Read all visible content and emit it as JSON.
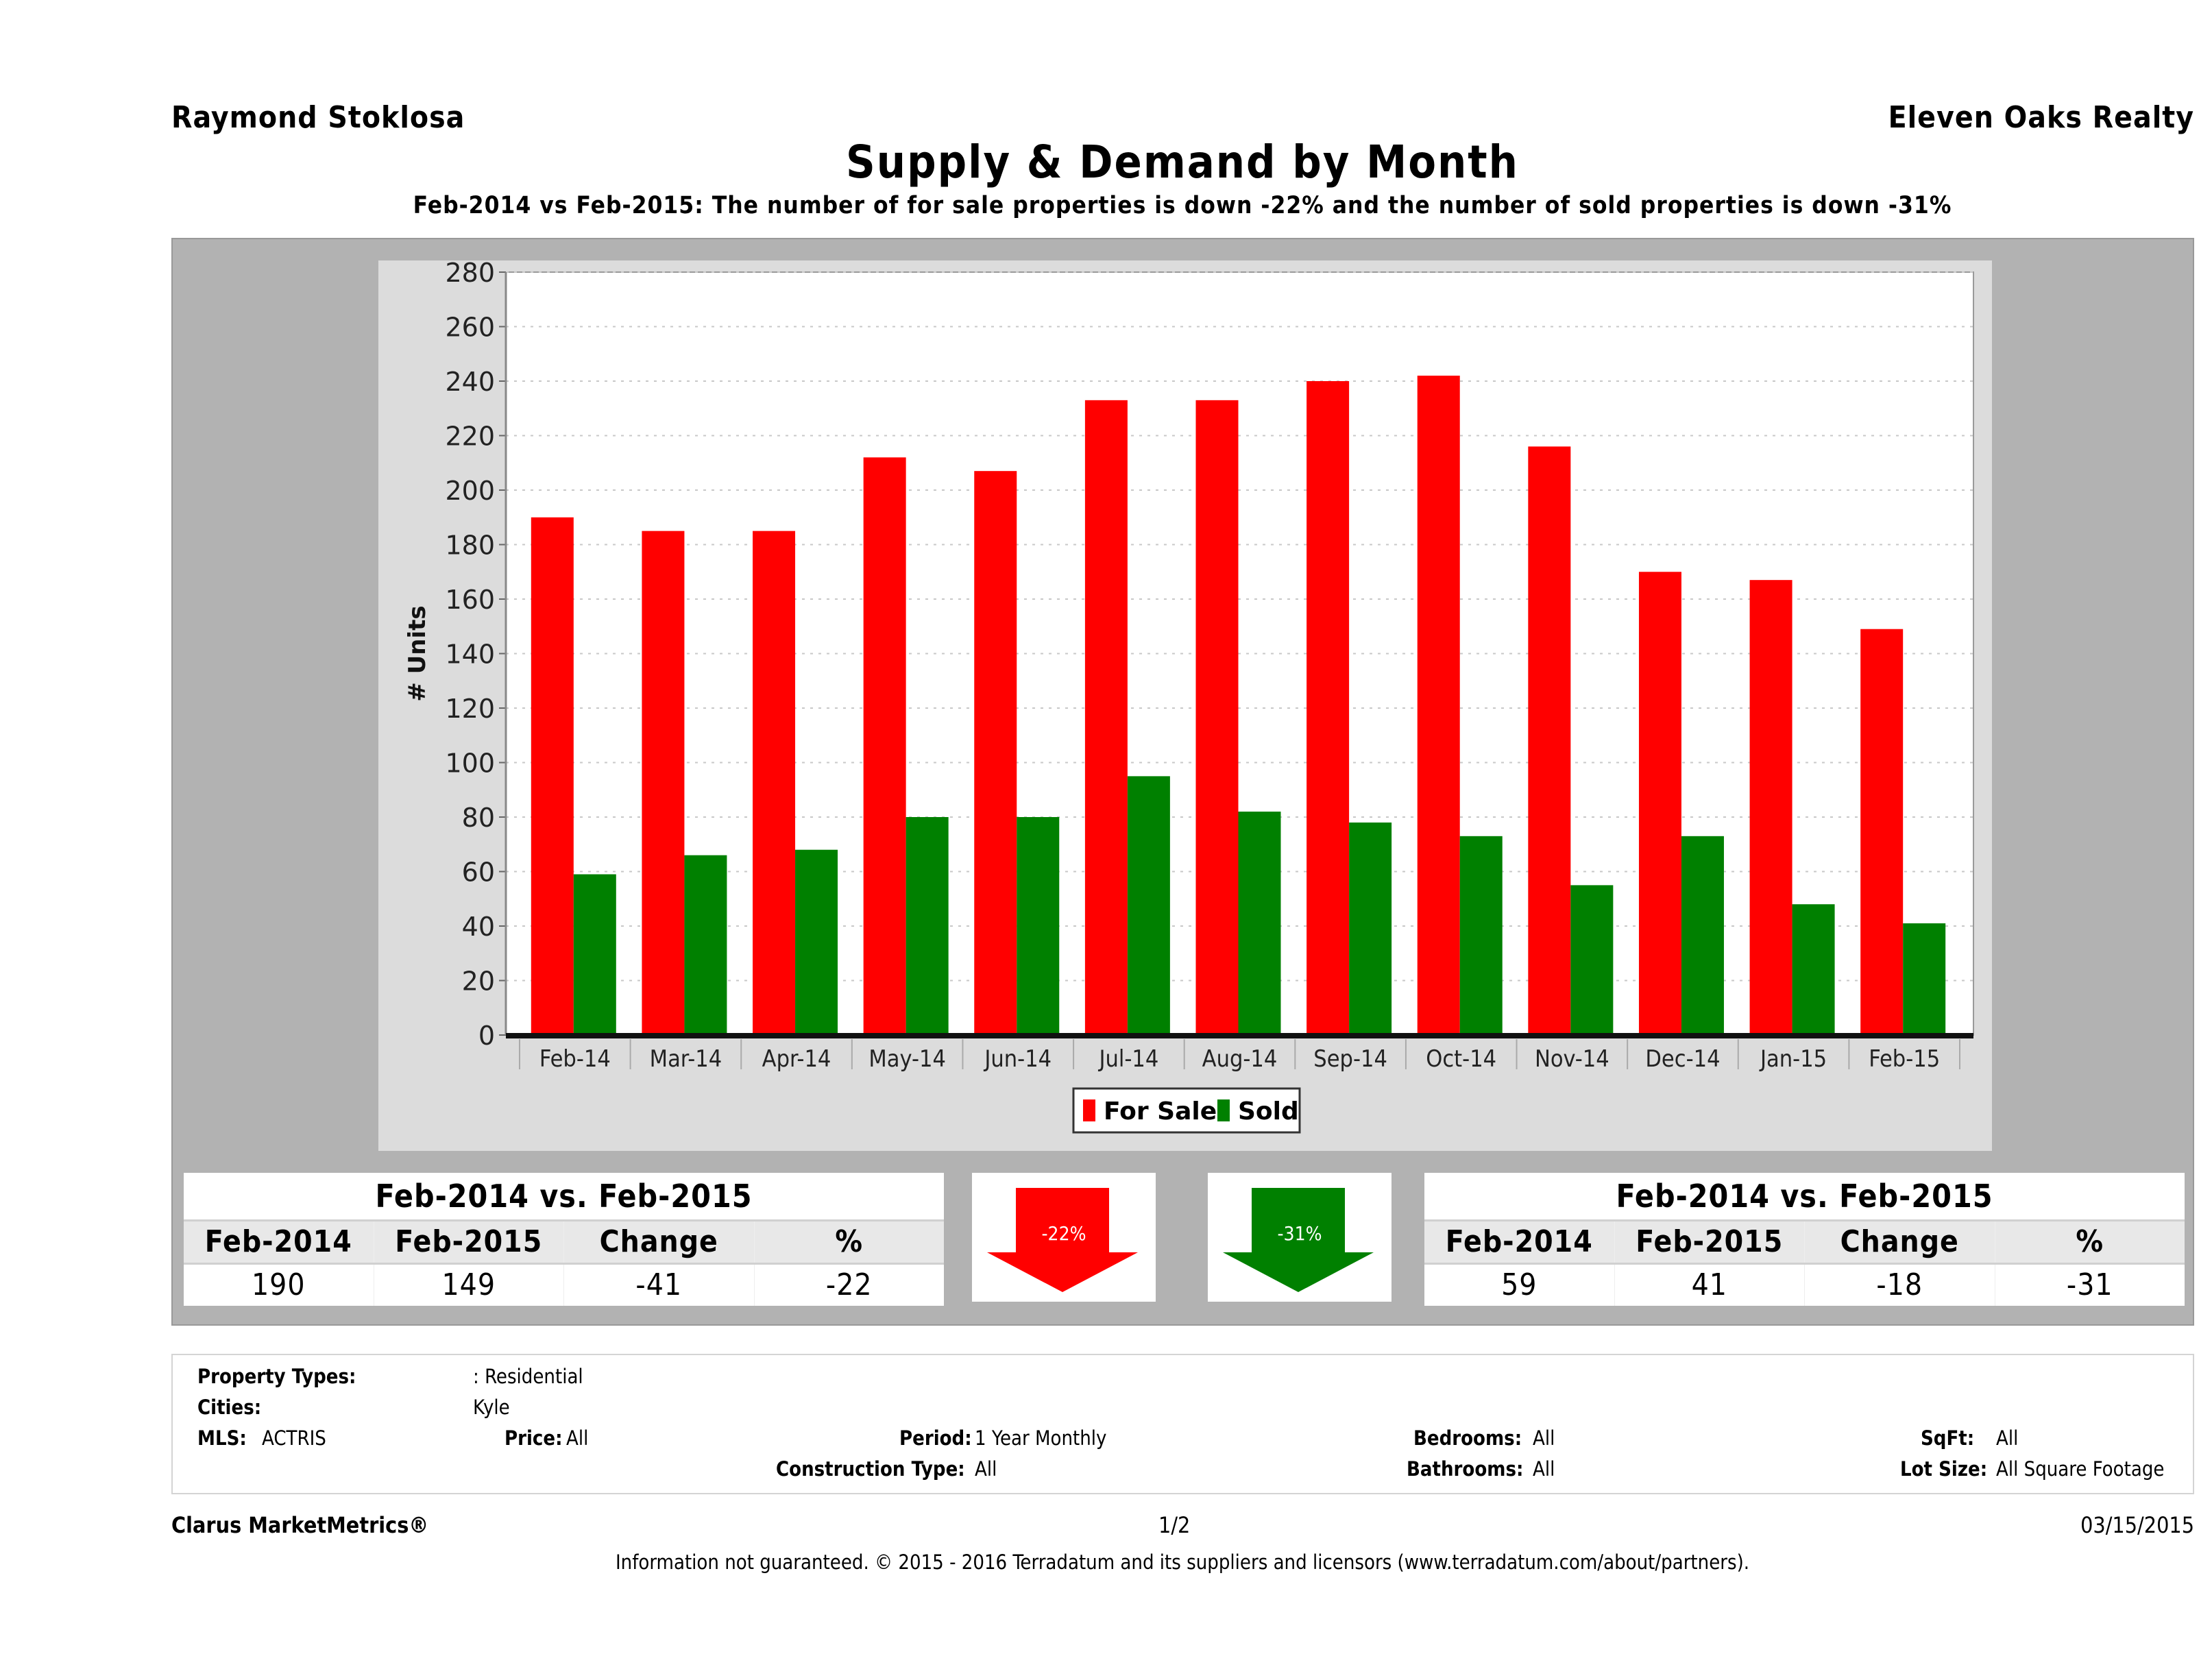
{
  "header": {
    "agent_name": "Raymond Stoklosa",
    "office_name": "Eleven Oaks Realty",
    "title": "Supply & Demand by Month",
    "subtitle": "Feb-2014 vs Feb-2015: The number of for sale properties is down -22% and the number of sold properties is down -31%"
  },
  "chart_data": {
    "type": "bar",
    "title": "Supply & Demand by Month",
    "xlabel": "",
    "ylabel": "# Units",
    "ylim": [
      0,
      280
    ],
    "yticks": [
      "0",
      "20",
      "40",
      "60",
      "80",
      "100",
      "120",
      "140",
      "160",
      "180",
      "200",
      "220",
      "240",
      "260",
      "280"
    ],
    "grid": true,
    "legend_position": "bottom",
    "categories": [
      "Feb-14",
      "Mar-14",
      "Apr-14",
      "May-14",
      "Jun-14",
      "Jul-14",
      "Aug-14",
      "Sep-14",
      "Oct-14",
      "Nov-14",
      "Dec-14",
      "Jan-15",
      "Feb-15"
    ],
    "series": [
      {
        "name": "For Sale",
        "color": "#ff0000",
        "values": [
          190,
          185,
          185,
          212,
          207,
          233,
          233,
          240,
          242,
          216,
          170,
          167,
          149
        ]
      },
      {
        "name": "Sold",
        "color": "#008000",
        "values": [
          59,
          66,
          68,
          80,
          80,
          95,
          82,
          78,
          73,
          55,
          73,
          48,
          41
        ]
      }
    ]
  },
  "summary_left": {
    "title": "Feb-2014 vs. Feb-2015",
    "headers": [
      "Feb-2014",
      "Feb-2015",
      "Change",
      "%"
    ],
    "values": [
      "190",
      "149",
      "-41",
      "-22"
    ]
  },
  "summary_right": {
    "title": "Feb-2014 vs. Feb-2015",
    "headers": [
      "Feb-2014",
      "Feb-2015",
      "Change",
      "%"
    ],
    "values": [
      "59",
      "41",
      "-18",
      "-31"
    ]
  },
  "arrows": {
    "for_sale": {
      "label": "-22%",
      "color": "#ff0000",
      "icon": "arrow-down-icon"
    },
    "sold": {
      "label": "-31%",
      "color": "#008000",
      "icon": "arrow-down-icon"
    }
  },
  "criteria": {
    "property_types_label": "Property Types:",
    "property_types_value": ": Residential",
    "cities_label": "Cities:",
    "cities_value": "Kyle",
    "mls_label": "MLS:",
    "mls_value": "ACTRIS",
    "price_label": "Price:",
    "price_value": "All",
    "period_label": "Period:",
    "period_value": "1 Year Monthly",
    "construction_label": "Construction Type:",
    "construction_value": "All",
    "bedrooms_label": "Bedrooms:",
    "bedrooms_value": "All",
    "bathrooms_label": "Bathrooms:",
    "bathrooms_value": "All",
    "sqft_label": "SqFt:",
    "sqft_value": "All",
    "lotsize_label": "Lot Size:",
    "lotsize_value": "All Square Footage"
  },
  "footer": {
    "brand": "Clarus MarketMetrics®",
    "page": "1/2",
    "date": "03/15/2015",
    "disclaimer": "Information not guaranteed. © 2015 - 2016 Terradatum and its suppliers and licensors (www.terradatum.com/about/partners)."
  }
}
